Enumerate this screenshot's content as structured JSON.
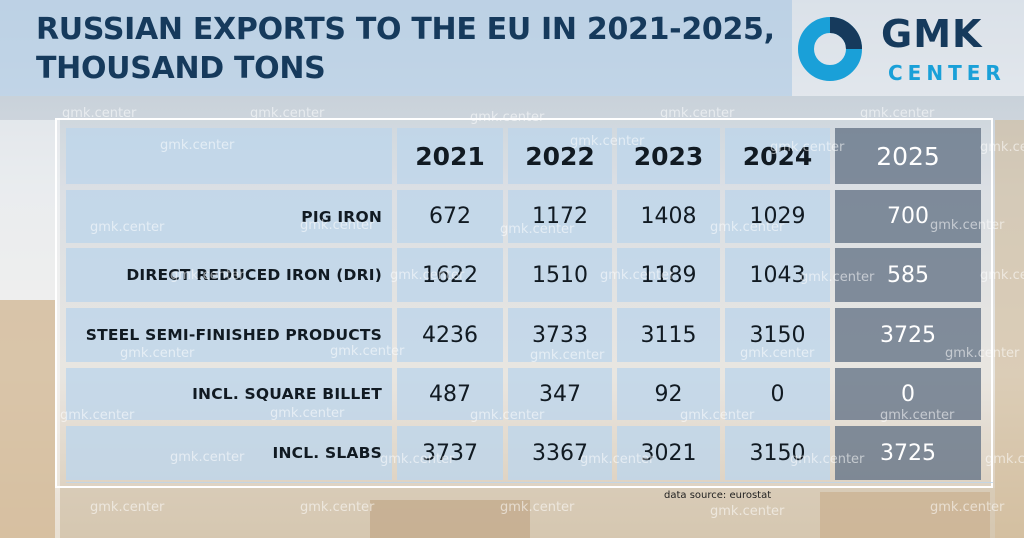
{
  "title": "RUSSIAN EXPORTS TO THE EU IN 2021-2025, THOUSAND TONS",
  "logo": {
    "name": "GMK",
    "sub": "CENTER"
  },
  "source": "data source: eurostat",
  "watermark": "gmk.center",
  "colors": {
    "title": "#163a5c",
    "accent": "#1aa0d8",
    "highlight_column": "#69788a"
  },
  "chart_data": {
    "type": "table",
    "title": "RUSSIAN EXPORTS TO THE EU IN 2021-2025, THOUSAND TONS",
    "columns": [
      "2021",
      "2022",
      "2023",
      "2024",
      "2025"
    ],
    "highlighted_column": "2025",
    "rows": [
      {
        "label": "PIG IRON",
        "values": [
          672,
          1172,
          1408,
          1029,
          700
        ]
      },
      {
        "label": "DIRECT REDUCED IRON (DRI)",
        "values": [
          1622,
          1510,
          1189,
          1043,
          585
        ]
      },
      {
        "label": "STEEL SEMI-FINISHED PRODUCTS",
        "values": [
          4236,
          3733,
          3115,
          3150,
          3725
        ]
      },
      {
        "label": "INCL. SQUARE BILLET",
        "values": [
          487,
          347,
          92,
          0,
          0
        ]
      },
      {
        "label": "INCL. SLABS",
        "values": [
          3737,
          3367,
          3021,
          3150,
          3725
        ]
      }
    ]
  }
}
